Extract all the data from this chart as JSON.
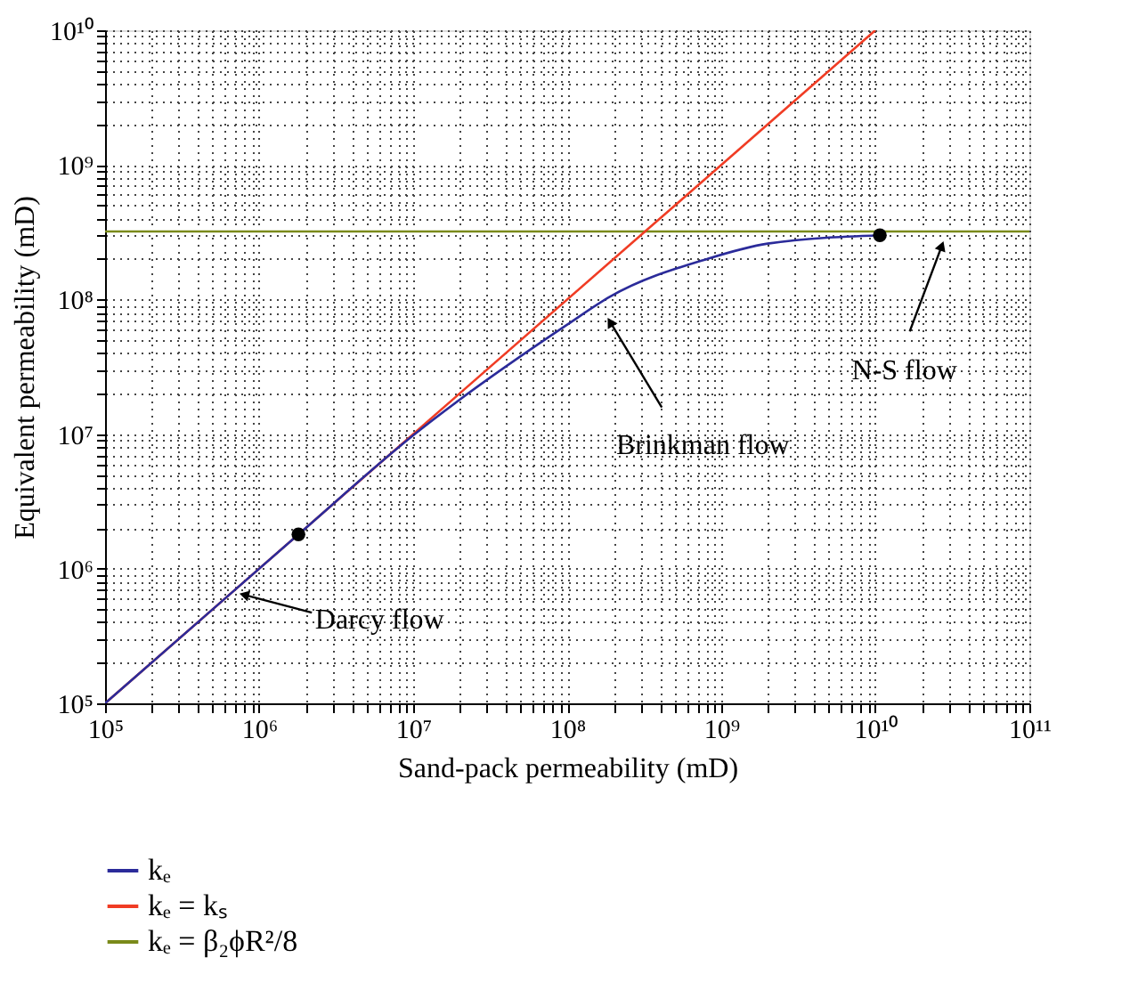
{
  "chart_data": {
    "type": "line",
    "xlabel": "Sand-pack permeability (mD)",
    "ylabel": "Equivalent permeability (mD)",
    "log": "xy",
    "grid": true,
    "legend": "bottom",
    "line_style": "solid",
    "xlim": [
      100000,
      100000000000
    ],
    "ylim": [
      100000,
      10000000000
    ],
    "xticks": [
      {
        "value": 100000,
        "label": "10⁵"
      },
      {
        "value": 200000,
        "label": null
      },
      {
        "value": 300000,
        "label": null
      },
      {
        "value": 400000,
        "label": null
      },
      {
        "value": 500000,
        "label": null
      },
      {
        "value": 600000,
        "label": null
      },
      {
        "value": 700000,
        "label": null
      },
      {
        "value": 800000,
        "label": null
      },
      {
        "value": 900000,
        "label": null
      },
      {
        "value": 1000000,
        "label": "10⁶"
      },
      {
        "value": 2000000,
        "label": null
      },
      {
        "value": 3000000,
        "label": null
      },
      {
        "value": 4000000,
        "label": null
      },
      {
        "value": 5000000,
        "label": null
      },
      {
        "value": 6000000,
        "label": null
      },
      {
        "value": 7000000,
        "label": null
      },
      {
        "value": 8000000,
        "label": null
      },
      {
        "value": 9000000,
        "label": null
      },
      {
        "value": 10000000,
        "label": "10⁷"
      },
      {
        "value": 20000000,
        "label": null
      },
      {
        "value": 30000000,
        "label": null
      },
      {
        "value": 40000000,
        "label": null
      },
      {
        "value": 50000000,
        "label": null
      },
      {
        "value": 60000000,
        "label": null
      },
      {
        "value": 70000000,
        "label": null
      },
      {
        "value": 80000000,
        "label": null
      },
      {
        "value": 90000000,
        "label": null
      },
      {
        "value": 100000000,
        "label": "10⁸"
      },
      {
        "value": 200000000,
        "label": null
      },
      {
        "value": 300000000,
        "label": null
      },
      {
        "value": 400000000,
        "label": null
      },
      {
        "value": 500000000,
        "label": null
      },
      {
        "value": 600000000,
        "label": null
      },
      {
        "value": 700000000,
        "label": null
      },
      {
        "value": 800000000,
        "label": null
      },
      {
        "value": 900000000,
        "label": null
      },
      {
        "value": 1000000000,
        "label": "10⁹"
      },
      {
        "value": 2000000000,
        "label": null
      },
      {
        "value": 3000000000,
        "label": null
      },
      {
        "value": 4000000000,
        "label": null
      },
      {
        "value": 5000000000,
        "label": null
      },
      {
        "value": 6000000000,
        "label": null
      },
      {
        "value": 7000000000,
        "label": null
      },
      {
        "value": 8000000000,
        "label": null
      },
      {
        "value": 9000000000,
        "label": null
      },
      {
        "value": 10000000000,
        "label": "10¹⁰"
      },
      {
        "value": 20000000000,
        "label": null
      },
      {
        "value": 30000000000,
        "label": null
      },
      {
        "value": 40000000000,
        "label": null
      },
      {
        "value": 50000000000,
        "label": null
      },
      {
        "value": 60000000000,
        "label": null
      },
      {
        "value": 70000000000,
        "label": null
      },
      {
        "value": 80000000000,
        "label": null
      },
      {
        "value": 90000000000,
        "label": null
      },
      {
        "value": 100000000000,
        "label": "10¹¹"
      }
    ],
    "yticks": [
      {
        "value": 100000,
        "label": "10⁵"
      },
      {
        "value": 200000,
        "label": null
      },
      {
        "value": 300000,
        "label": null
      },
      {
        "value": 400000,
        "label": null
      },
      {
        "value": 500000,
        "label": null
      },
      {
        "value": 600000,
        "label": null
      },
      {
        "value": 700000,
        "label": null
      },
      {
        "value": 800000,
        "label": null
      },
      {
        "value": 900000,
        "label": null
      },
      {
        "value": 1000000,
        "label": "10⁶"
      },
      {
        "value": 2000000,
        "label": null
      },
      {
        "value": 3000000,
        "label": null
      },
      {
        "value": 4000000,
        "label": null
      },
      {
        "value": 5000000,
        "label": null
      },
      {
        "value": 6000000,
        "label": null
      },
      {
        "value": 7000000,
        "label": null
      },
      {
        "value": 8000000,
        "label": null
      },
      {
        "value": 9000000,
        "label": null
      },
      {
        "value": 10000000,
        "label": "10⁷"
      },
      {
        "value": 20000000,
        "label": null
      },
      {
        "value": 30000000,
        "label": null
      },
      {
        "value": 40000000,
        "label": null
      },
      {
        "value": 50000000,
        "label": null
      },
      {
        "value": 60000000,
        "label": null
      },
      {
        "value": 70000000,
        "label": null
      },
      {
        "value": 80000000,
        "label": null
      },
      {
        "value": 90000000,
        "label": null
      },
      {
        "value": 100000000,
        "label": "10⁸"
      },
      {
        "value": 200000000,
        "label": null
      },
      {
        "value": 300000000,
        "label": null
      },
      {
        "value": 400000000,
        "label": null
      },
      {
        "value": 500000000,
        "label": null
      },
      {
        "value": 600000000,
        "label": null
      },
      {
        "value": 700000000,
        "label": null
      },
      {
        "value": 800000000,
        "label": null
      },
      {
        "value": 900000000,
        "label": null
      },
      {
        "value": 1000000000,
        "label": "10⁹"
      },
      {
        "value": 2000000000,
        "label": null
      },
      {
        "value": 3000000000,
        "label": null
      },
      {
        "value": 4000000000,
        "label": null
      },
      {
        "value": 5000000000,
        "label": null
      },
      {
        "value": 6000000000,
        "label": null
      },
      {
        "value": 7000000000,
        "label": null
      },
      {
        "value": 8000000000,
        "label": null
      },
      {
        "value": 9000000000,
        "label": null
      },
      {
        "value": 10000000000,
        "label": "10¹⁰"
      }
    ],
    "series": [
      {
        "name": "kₑ",
        "color": "#2b2b9a",
        "x": [
          100000,
          1800000,
          10000000,
          100000000,
          190000000,
          810000000,
          2000000000,
          10700000000
        ],
        "values": [
          100000,
          1800000,
          9800000,
          65000000,
          105000000,
          200000000,
          260000000,
          300000000
        ]
      },
      {
        "name": "kₑ = kₛ",
        "color": "#f03c24",
        "x": [
          100000,
          10000000000
        ],
        "values": [
          100000,
          10000000000
        ]
      },
      {
        "name": "kₑ = β₂ϕR²/8",
        "color": "#7a8a1a",
        "x": [
          100000,
          100000000000
        ],
        "values": [
          320000000,
          320000000
        ]
      },
      {
        "type": "scatter",
        "marker": "circle",
        "color": "#000000",
        "x": [
          1800000,
          10700000000
        ],
        "values": [
          1800000,
          300000000
        ]
      }
    ],
    "annotations": [
      {
        "text": "Darcy flow",
        "x": 800000,
        "y": 640000
      },
      {
        "text": "Brinkman flow",
        "x": 190000000,
        "y": 68000000
      },
      {
        "text": "N-S flow",
        "x": 27000000000,
        "y": 250000000
      }
    ]
  }
}
